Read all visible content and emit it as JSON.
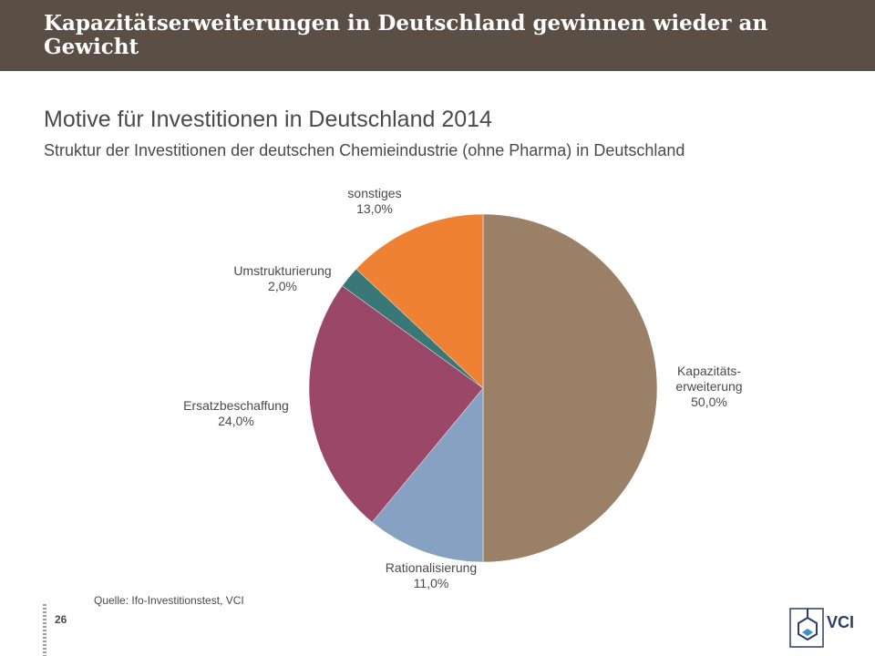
{
  "header": {
    "title": "Kapazitätserweiterungen in Deutschland gewinnen wieder an Gewicht"
  },
  "chart_data": {
    "type": "pie",
    "title": "Motive für Investitionen in Deutschland 2014",
    "subtitle": "Struktur der Investitionen der deutschen Chemieindustrie (ohne Pharma) in Deutschland",
    "slices": [
      {
        "label_lines": [
          "Kapazitäts-",
          "erweiterung"
        ],
        "value": 50.0,
        "value_label": "50,0%",
        "color": "#9b8068"
      },
      {
        "label_lines": [
          "Rationalisierung"
        ],
        "value": 11.0,
        "value_label": "11,0%",
        "color": "#87a1c3"
      },
      {
        "label_lines": [
          "Ersatzbeschaffung"
        ],
        "value": 24.0,
        "value_label": "24,0%",
        "color": "#9b4868"
      },
      {
        "label_lines": [
          "Umstrukturierung"
        ],
        "value": 2.0,
        "value_label": "2,0%",
        "color": "#3a7878"
      },
      {
        "label_lines": [
          "sonstiges"
        ],
        "value": 13.0,
        "value_label": "13,0%",
        "color": "#ee8133"
      }
    ]
  },
  "footer": {
    "source": "Quelle: Ifo-Investitionstest, VCI",
    "page_number": "26",
    "logo_text": "VCI"
  }
}
